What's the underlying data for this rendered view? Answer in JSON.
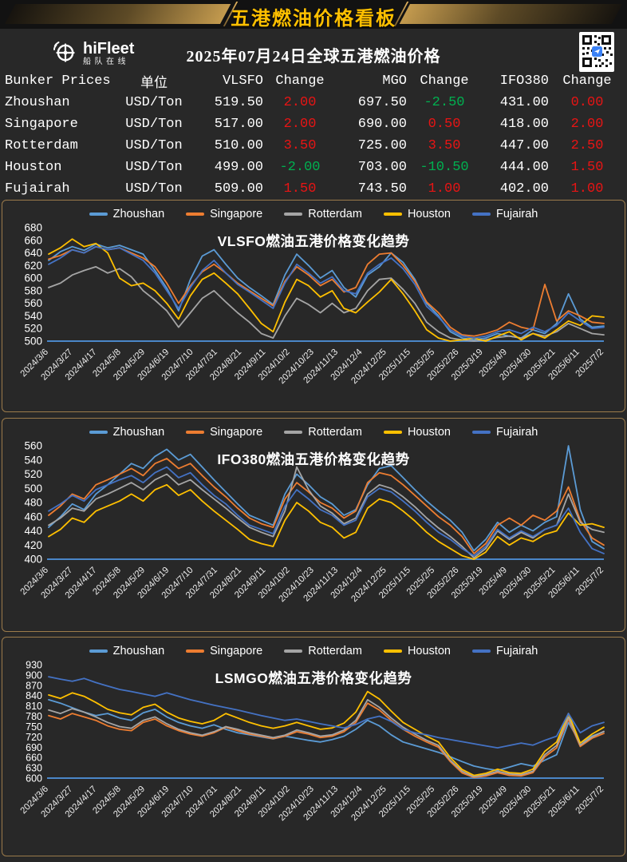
{
  "banner": {
    "title": "五港燃油价格看板"
  },
  "header": {
    "brand": "hiFleet",
    "brand_sub": "船队在线",
    "date_title": "2025年07月24日全球五港燃油价格"
  },
  "table": {
    "headers": [
      "Bunker Prices",
      "单位",
      "VLSFO",
      "Change",
      "MGO",
      "Change",
      "IFO380",
      "Change"
    ],
    "rows": [
      {
        "port": "Zhoushan",
        "unit": "USD/Ton",
        "vlsfo": "519.50",
        "vlsfo_change": "2.00",
        "mgo": "697.50",
        "mgo_change": "-2.50",
        "ifo380": "431.00",
        "ifo380_change": "0.00"
      },
      {
        "port": "Singapore",
        "unit": "USD/Ton",
        "vlsfo": "517.00",
        "vlsfo_change": "2.00",
        "mgo": "690.00",
        "mgo_change": "0.50",
        "ifo380": "418.00",
        "ifo380_change": "2.00"
      },
      {
        "port": "Rotterdam",
        "unit": "USD/Ton",
        "vlsfo": "510.00",
        "vlsfo_change": "3.50",
        "mgo": "725.00",
        "mgo_change": "3.50",
        "ifo380": "447.00",
        "ifo380_change": "2.50"
      },
      {
        "port": "Houston",
        "unit": "USD/Ton",
        "vlsfo": "499.00",
        "vlsfo_change": "-2.00",
        "mgo": "703.00",
        "mgo_change": "-10.50",
        "ifo380": "444.00",
        "ifo380_change": "1.50"
      },
      {
        "port": "Fujairah",
        "unit": "USD/Ton",
        "vlsfo": "509.00",
        "vlsfo_change": "1.50",
        "mgo": "743.50",
        "mgo_change": "1.00",
        "ifo380": "402.00",
        "ifo380_change": "1.00"
      }
    ]
  },
  "colors": {
    "rise_red": "#e81414",
    "fall_green": "#00b050",
    "accent_gold": "#ffc000",
    "axis_line": "#4a86c8",
    "panel_border": "#9b7b4b"
  },
  "chart_data": [
    {
      "type": "line",
      "title": "VLSFO燃油五港价格变化趋势",
      "xlabel": "",
      "ylabel": "",
      "ylim": [
        500,
        680
      ],
      "yticks": [
        680,
        660,
        640,
        620,
        600,
        580,
        560,
        540,
        520,
        500
      ],
      "grid": false,
      "legend_position": "top",
      "categories": [
        "2024/3/6",
        "2024/3/27",
        "2024/4/17",
        "2024/5/8",
        "2024/5/29",
        "2024/6/19",
        "2024/7/10",
        "2024/7/31",
        "2024/8/21",
        "2024/9/11",
        "2024/10/2",
        "2024/10/23",
        "2024/11/13",
        "2024/12/4",
        "2024/12/25",
        "2025/1/15",
        "2025/2/5",
        "2025/2/26",
        "2025/3/19",
        "2025/4/9",
        "2025/4/30",
        "2025/5/21",
        "2025/6/11",
        "2025/7/2"
      ],
      "series": [
        {
          "name": "Zhoushan",
          "color": "#5B9BD5",
          "values": [
            628,
            642,
            650,
            644,
            654,
            648,
            652,
            645,
            638,
            612,
            584,
            548,
            598,
            635,
            645,
            622,
            600,
            585,
            572,
            558,
            605,
            638,
            620,
            600,
            612,
            585,
            570,
            605,
            618,
            640,
            625,
            598,
            560,
            540,
            515,
            505,
            502,
            505,
            512,
            508,
            505,
            518,
            512,
            528,
            575,
            535,
            522,
            524
          ]
        },
        {
          "name": "Singapore",
          "color": "#ED7D31",
          "values": [
            630,
            636,
            645,
            640,
            650,
            645,
            648,
            640,
            632,
            618,
            592,
            560,
            588,
            610,
            622,
            608,
            592,
            580,
            568,
            556,
            595,
            618,
            605,
            588,
            598,
            578,
            585,
            622,
            638,
            640,
            620,
            595,
            562,
            545,
            522,
            510,
            508,
            512,
            518,
            530,
            522,
            518,
            590,
            532,
            548,
            540,
            530,
            528
          ]
        },
        {
          "name": "Rotterdam",
          "color": "#A5A5A5",
          "values": [
            585,
            592,
            605,
            612,
            618,
            608,
            615,
            602,
            580,
            565,
            548,
            522,
            545,
            568,
            580,
            562,
            545,
            530,
            512,
            505,
            540,
            568,
            558,
            545,
            560,
            545,
            552,
            580,
            598,
            600,
            582,
            560,
            530,
            515,
            505,
            502,
            500,
            502,
            506,
            508,
            505,
            512,
            508,
            515,
            528,
            520,
            512,
            510
          ]
        },
        {
          "name": "Houston",
          "color": "#FFC000",
          "values": [
            638,
            648,
            662,
            650,
            655,
            640,
            600,
            588,
            592,
            580,
            560,
            535,
            572,
            598,
            608,
            592,
            575,
            552,
            528,
            515,
            562,
            598,
            588,
            570,
            580,
            552,
            545,
            562,
            578,
            598,
            575,
            548,
            518,
            505,
            500,
            502,
            505,
            500,
            508,
            515,
            502,
            512,
            505,
            518,
            532,
            525,
            540,
            538
          ]
        },
        {
          "name": "Fujairah",
          "color": "#4472C4",
          "values": [
            622,
            632,
            645,
            640,
            650,
            645,
            648,
            638,
            628,
            608,
            580,
            552,
            585,
            612,
            628,
            608,
            590,
            578,
            565,
            552,
            592,
            622,
            608,
            592,
            602,
            580,
            575,
            608,
            622,
            632,
            615,
            590,
            555,
            538,
            518,
            508,
            505,
            508,
            515,
            518,
            512,
            522,
            515,
            525,
            545,
            532,
            520,
            522
          ]
        }
      ]
    },
    {
      "type": "line",
      "title": "IFO380燃油五港价格变化趋势",
      "xlabel": "",
      "ylabel": "",
      "ylim": [
        400,
        560
      ],
      "yticks": [
        560,
        540,
        520,
        500,
        480,
        460,
        440,
        420,
        400
      ],
      "grid": false,
      "legend_position": "top",
      "categories": [
        "2024/3/6",
        "2024/3/27",
        "2024/4/17",
        "2024/5/8",
        "2024/5/29",
        "2024/6/19",
        "2024/7/10",
        "2024/7/31",
        "2024/8/21",
        "2024/9/11",
        "2024/10/2",
        "2024/10/23",
        "2024/11/13",
        "2024/12/4",
        "2024/12/25",
        "2025/1/15",
        "2025/2/5",
        "2025/2/26",
        "2025/3/19",
        "2025/4/9",
        "2025/4/30",
        "2025/5/21",
        "2025/6/11",
        "2025/7/2"
      ],
      "series": [
        {
          "name": "Zhoushan",
          "color": "#5B9BD5",
          "values": [
            445,
            460,
            478,
            470,
            492,
            505,
            520,
            535,
            528,
            545,
            555,
            540,
            548,
            530,
            512,
            495,
            478,
            462,
            455,
            448,
            492,
            520,
            505,
            488,
            478,
            462,
            470,
            505,
            528,
            532,
            515,
            498,
            482,
            468,
            455,
            438,
            412,
            428,
            452,
            438,
            448,
            440,
            452,
            460,
            560,
            470,
            425,
            415
          ]
        },
        {
          "name": "Singapore",
          "color": "#ED7D31",
          "values": [
            462,
            475,
            492,
            485,
            505,
            512,
            520,
            528,
            518,
            535,
            542,
            528,
            535,
            518,
            502,
            488,
            472,
            458,
            450,
            445,
            485,
            508,
            495,
            480,
            472,
            458,
            468,
            508,
            522,
            518,
            505,
            490,
            475,
            460,
            448,
            432,
            408,
            422,
            448,
            458,
            448,
            462,
            455,
            468,
            502,
            455,
            430,
            420
          ]
        },
        {
          "name": "Rotterdam",
          "color": "#A5A5A5",
          "values": [
            448,
            458,
            472,
            468,
            485,
            492,
            500,
            508,
            498,
            512,
            520,
            505,
            512,
            498,
            485,
            472,
            458,
            445,
            438,
            432,
            468,
            530,
            498,
            475,
            465,
            450,
            458,
            492,
            505,
            500,
            488,
            474,
            458,
            444,
            432,
            418,
            402,
            415,
            440,
            428,
            438,
            430,
            442,
            448,
            492,
            452,
            442,
            438
          ]
        },
        {
          "name": "Houston",
          "color": "#FFC000",
          "values": [
            432,
            442,
            458,
            452,
            468,
            475,
            482,
            492,
            482,
            498,
            505,
            490,
            498,
            482,
            468,
            455,
            442,
            428,
            422,
            418,
            455,
            480,
            468,
            452,
            445,
            430,
            438,
            472,
            485,
            480,
            468,
            454,
            438,
            425,
            415,
            405,
            400,
            410,
            432,
            420,
            430,
            425,
            435,
            440,
            465,
            448,
            450,
            445
          ]
        },
        {
          "name": "Fujairah",
          "color": "#4472C4",
          "values": [
            468,
            478,
            490,
            482,
            498,
            505,
            512,
            518,
            508,
            522,
            530,
            515,
            522,
            505,
            490,
            478,
            462,
            448,
            442,
            436,
            475,
            498,
            485,
            470,
            462,
            448,
            455,
            488,
            500,
            495,
            482,
            468,
            452,
            438,
            428,
            415,
            405,
            418,
            442,
            430,
            440,
            432,
            442,
            448,
            472,
            438,
            415,
            408
          ]
        }
      ]
    },
    {
      "type": "line",
      "title": "LSMGO燃油五港价格变化趋势",
      "xlabel": "",
      "ylabel": "",
      "ylim": [
        600,
        930
      ],
      "yticks": [
        930,
        900,
        870,
        840,
        810,
        780,
        750,
        720,
        690,
        660,
        630,
        600
      ],
      "grid": false,
      "legend_position": "top",
      "categories": [
        "2024/3/6",
        "2024/3/27",
        "2024/4/17",
        "2024/5/8",
        "2024/5/29",
        "2024/6/19",
        "2024/7/10",
        "2024/7/31",
        "2024/8/21",
        "2024/9/11",
        "2024/10/2",
        "2024/10/23",
        "2024/11/13",
        "2024/12/4",
        "2024/12/25",
        "2025/1/15",
        "2025/2/5",
        "2025/2/26",
        "2025/3/19",
        "2025/4/9",
        "2025/4/30",
        "2025/5/21",
        "2025/6/11",
        "2025/7/2"
      ],
      "series": [
        {
          "name": "Zhoushan",
          "color": "#5B9BD5",
          "values": [
            828,
            818,
            805,
            792,
            782,
            788,
            775,
            768,
            790,
            800,
            778,
            762,
            752,
            745,
            755,
            742,
            732,
            726,
            720,
            714,
            722,
            716,
            710,
            705,
            712,
            722,
            742,
            768,
            752,
            726,
            705,
            695,
            685,
            675,
            662,
            648,
            635,
            628,
            622,
            632,
            642,
            635,
            652,
            668,
            762,
            702,
            722,
            735
          ]
        },
        {
          "name": "Singapore",
          "color": "#ED7D31",
          "values": [
            782,
            772,
            788,
            778,
            768,
            752,
            742,
            738,
            762,
            772,
            752,
            738,
            728,
            722,
            732,
            748,
            738,
            728,
            722,
            715,
            722,
            735,
            728,
            718,
            722,
            735,
            762,
            818,
            798,
            768,
            742,
            722,
            705,
            690,
            648,
            615,
            602,
            606,
            616,
            608,
            606,
            616,
            662,
            688,
            772,
            692,
            716,
            730
          ]
        },
        {
          "name": "Rotterdam",
          "color": "#A5A5A5",
          "values": [
            798,
            788,
            802,
            792,
            778,
            762,
            750,
            745,
            768,
            778,
            758,
            742,
            732,
            725,
            735,
            750,
            742,
            732,
            725,
            718,
            725,
            740,
            732,
            722,
            726,
            740,
            768,
            828,
            806,
            775,
            748,
            728,
            710,
            695,
            652,
            620,
            604,
            610,
            620,
            612,
            610,
            620,
            668,
            695,
            778,
            696,
            720,
            736
          ]
        },
        {
          "name": "Houston",
          "color": "#FFC000",
          "values": [
            842,
            832,
            848,
            838,
            820,
            800,
            790,
            784,
            806,
            815,
            792,
            775,
            765,
            758,
            768,
            788,
            775,
            762,
            752,
            745,
            752,
            762,
            752,
            742,
            746,
            760,
            792,
            852,
            830,
            795,
            762,
            742,
            722,
            705,
            660,
            625,
            608,
            614,
            626,
            616,
            614,
            626,
            678,
            705,
            788,
            702,
            728,
            748
          ]
        },
        {
          "name": "Fujairah",
          "color": "#4472C4",
          "values": [
            895,
            888,
            882,
            890,
            878,
            868,
            858,
            852,
            845,
            838,
            848,
            838,
            828,
            820,
            812,
            805,
            798,
            790,
            782,
            775,
            768,
            772,
            765,
            758,
            752,
            746,
            756,
            772,
            780,
            765,
            742,
            732,
            726,
            718,
            712,
            706,
            700,
            694,
            688,
            695,
            702,
            696,
            710,
            722,
            788,
            732,
            752,
            762
          ]
        }
      ]
    }
  ]
}
